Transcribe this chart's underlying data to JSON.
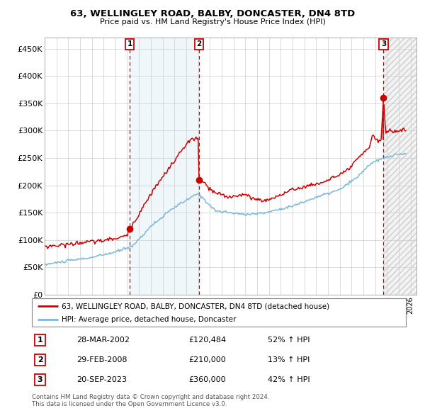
{
  "title": "63, WELLINGLEY ROAD, BALBY, DONCASTER, DN4 8TD",
  "subtitle": "Price paid vs. HM Land Registry's House Price Index (HPI)",
  "hpi_color": "#7ab8d9",
  "price_color": "#cc0000",
  "purchase_marker_color": "#cc0000",
  "sale_box_color": "#cc0000",
  "ylim": [
    0,
    470000
  ],
  "yticks": [
    0,
    50000,
    100000,
    150000,
    200000,
    250000,
    300000,
    350000,
    400000,
    450000
  ],
  "ytick_labels": [
    "£0",
    "£50K",
    "£100K",
    "£150K",
    "£200K",
    "£250K",
    "£300K",
    "£350K",
    "£400K",
    "£450K"
  ],
  "legend1": "63, WELLINGLEY ROAD, BALBY, DONCASTER, DN4 8TD (detached house)",
  "legend2": "HPI: Average price, detached house, Doncaster",
  "purchase1_date": "28-MAR-2002",
  "purchase1_price": 120484,
  "purchase1_price_str": "£120,484",
  "purchase1_hpi": "52% ↑ HPI",
  "purchase1_x": 2002.21,
  "purchase1_y": 120484,
  "purchase2_date": "29-FEB-2008",
  "purchase2_price": 210000,
  "purchase2_price_str": "£210,000",
  "purchase2_hpi": "13% ↑ HPI",
  "purchase2_x": 2008.08,
  "purchase2_y": 210000,
  "purchase3_date": "20-SEP-2023",
  "purchase3_price": 360000,
  "purchase3_price_str": "£360,000",
  "purchase3_hpi": "42% ↑ HPI",
  "purchase3_x": 2023.71,
  "purchase3_y": 360000,
  "footer1": "Contains HM Land Registry data © Crown copyright and database right 2024.",
  "footer2": "This data is licensed under the Open Government Licence v3.0.",
  "grid_color": "#cccccc",
  "dashed_vline_color": "#cc0000",
  "xmin": 1995.0,
  "xmax": 2026.5
}
